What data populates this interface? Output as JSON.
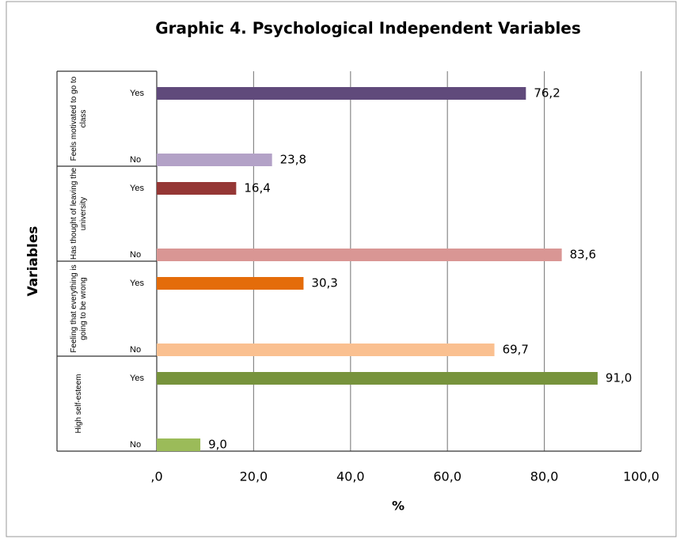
{
  "chart_data": {
    "type": "bar",
    "orientation": "horizontal",
    "title": "Graphic 4. Psychological Independent Variables",
    "xlabel": "%",
    "ylabel": "Variables",
    "groups": [
      "Feels motivated to go to class",
      "Has thought of leaving the university",
      "Feeling that everything is going to be wrong",
      "High self-esteem"
    ],
    "categories": [
      "Yes",
      "No",
      "Yes",
      "No",
      "Yes",
      "No",
      "Yes",
      "No"
    ],
    "values": [
      76.2,
      23.8,
      16.4,
      83.6,
      30.3,
      69.7,
      91.0,
      9.0
    ],
    "value_labels": [
      "76,2",
      "23,8",
      "16,4",
      "83,6",
      "30,3",
      "69,7",
      "91,0",
      "9,0"
    ],
    "colors": [
      "#604a7b",
      "#b3a2c7",
      "#953735",
      "#d99694",
      "#e46c0a",
      "#fac090",
      "#77933c",
      "#9bbb59"
    ],
    "xlim": [
      0,
      100
    ],
    "xticks": [
      {
        "value": 0,
        "label": ",0"
      },
      {
        "value": 20,
        "label": "20,0"
      },
      {
        "value": 40,
        "label": "40,0"
      },
      {
        "value": 60,
        "label": "60,0"
      },
      {
        "value": 80,
        "label": "80,0"
      },
      {
        "value": 100,
        "label": "100,0"
      }
    ],
    "grid": true
  }
}
